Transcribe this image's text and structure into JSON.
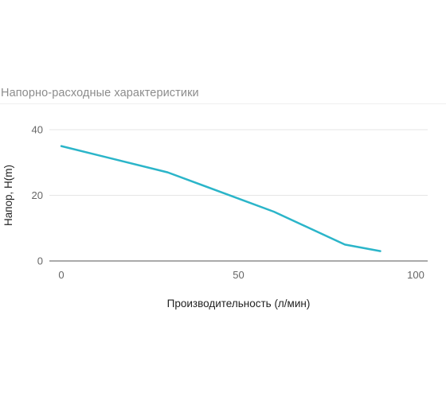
{
  "header": {
    "title": "Напорно-расходные характеристики"
  },
  "colors": {
    "line": "#2bb5c9",
    "grid": "#e6e6e6",
    "axis": "#555555"
  },
  "chart_data": {
    "type": "line",
    "title": "Напорно-расходные характеристики",
    "xlabel": "Производительность (л/мин)",
    "ylabel": "Напор, H(m)",
    "xlim": [
      0,
      100
    ],
    "ylim": [
      0,
      40
    ],
    "xticks": [
      "0",
      "50",
      "100"
    ],
    "yticks": [
      "0",
      "20",
      "40"
    ],
    "grid": true,
    "series": [
      {
        "x": [
          0,
          30,
          60,
          80,
          90
        ],
        "values": [
          35,
          27,
          15,
          5,
          3
        ]
      }
    ]
  }
}
